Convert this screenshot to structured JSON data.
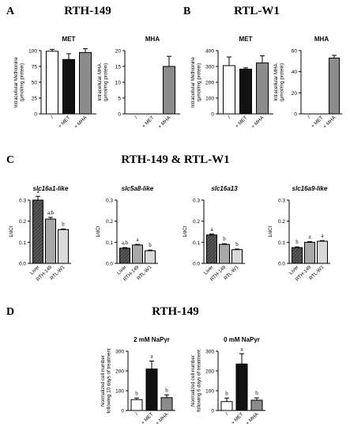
{
  "sections": [
    {
      "letter": "A",
      "title": "RTH-149"
    },
    {
      "letter": "B",
      "title": "RTL-W1"
    },
    {
      "letter": "C",
      "title": "RTH-149 & RTL-W1"
    },
    {
      "letter": "D",
      "title": "RTH-149"
    }
  ],
  "colors": {
    "white_bar": "#ffffff",
    "black_bar": "#111111",
    "gray_bar": "#8c8c8c",
    "light_gray_bar": "#d9d9d9",
    "mid_gray_bar": "#a8a8a8",
    "hatched_bar": "#4a4a4a",
    "axis": "#000000"
  },
  "chart_data": [
    {
      "type": "bar",
      "title": "MET",
      "ylabel": "Intracellular Methionine\n(µmol/mg protein)",
      "categories": [
        "/",
        "+ MET",
        "+ MHA"
      ],
      "values": [
        99,
        86,
        97
      ],
      "errors": [
        3,
        9,
        6
      ],
      "fills": [
        "white",
        "black",
        "gray"
      ],
      "letters": [
        "",
        "",
        ""
      ],
      "ylim": [
        0,
        100
      ],
      "yticks": [
        "0",
        "25",
        "50",
        "75",
        "100"
      ]
    },
    {
      "type": "bar",
      "title": "MHA",
      "ylabel": "Intracellular MHA\n(µmol/mg protein)",
      "categories": [
        "/",
        "+ MET",
        "+ MHA"
      ],
      "values": [
        0,
        0,
        15
      ],
      "errors": [
        0,
        0,
        3.2
      ],
      "fills": [
        "white",
        "black",
        "gray"
      ],
      "letters": [
        "",
        "",
        ""
      ],
      "ylim": [
        0,
        20
      ],
      "yticks": [
        "0",
        "5",
        "10",
        "15",
        "20"
      ]
    },
    {
      "type": "bar",
      "title": "MET",
      "ylabel": "Intracellular Methionine\n(µmol/mg protein)",
      "categories": [
        "/",
        "+ MET",
        "+ MHA"
      ],
      "values": [
        305,
        283,
        322
      ],
      "errors": [
        55,
        8,
        45
      ],
      "fills": [
        "white",
        "black",
        "gray"
      ],
      "letters": [
        "",
        "",
        ""
      ],
      "ylim": [
        0,
        400
      ],
      "yticks": [
        "0",
        "100",
        "200",
        "300",
        "400"
      ]
    },
    {
      "type": "bar",
      "title": "MHA",
      "ylabel": "Intracellular MHA\n(µmol/mg protein)",
      "categories": [
        "/",
        "+ MET",
        "+ MHA"
      ],
      "values": [
        0,
        0,
        53
      ],
      "errors": [
        0,
        0,
        2.5
      ],
      "fills": [
        "white",
        "black",
        "gray"
      ],
      "letters": [
        "",
        "",
        ""
      ],
      "ylim": [
        0,
        60
      ],
      "yticks": [
        "0",
        "20",
        "40",
        "60"
      ]
    },
    {
      "type": "bar",
      "title": "slc16a1-like",
      "ylabel": "1/dCt",
      "categories": [
        "Liver",
        "RTH-149",
        "RTL-W1"
      ],
      "values": [
        0.3,
        0.21,
        0.16
      ],
      "errors": [
        0.018,
        0.008,
        0.003
      ],
      "fills": [
        "hatched",
        "midgray",
        "lightgray"
      ],
      "letters": [
        "a",
        "a,b",
        "b"
      ],
      "ylim": [
        0,
        0.3
      ],
      "yticks": [
        "0.0",
        "0.1",
        "0.2",
        "0.3"
      ]
    },
    {
      "type": "bar",
      "title": "slc5a8-like",
      "ylabel": "1/dCt",
      "categories": [
        "Liver",
        "RTH-149",
        "RTL-W1"
      ],
      "values": [
        0.072,
        0.087,
        0.06
      ],
      "errors": [
        0.003,
        0.003,
        0.003
      ],
      "fills": [
        "hatched",
        "midgray",
        "lightgray"
      ],
      "letters": [
        "a,b",
        "a",
        "b"
      ],
      "ylim": [
        0,
        0.3
      ],
      "yticks": [
        "0.0",
        "0.1",
        "0.2",
        "0.3"
      ]
    },
    {
      "type": "bar",
      "title": "slc16a13",
      "ylabel": "1/dCt",
      "categories": [
        "Liver",
        "RTH-149",
        "RTL-W1"
      ],
      "values": [
        0.135,
        0.09,
        0.065
      ],
      "errors": [
        0.004,
        0.003,
        0.003
      ],
      "fills": [
        "hatched",
        "midgray",
        "lightgray"
      ],
      "letters": [
        "a",
        "b",
        "b"
      ],
      "ylim": [
        0,
        0.3
      ],
      "yticks": [
        "0.0",
        "0.1",
        "0.2",
        "0.3"
      ]
    },
    {
      "type": "bar",
      "title": "slc16a9-like",
      "ylabel": "1/dCt",
      "categories": [
        "Liver",
        "RTH-149",
        "RTL-W1"
      ],
      "values": [
        0.075,
        0.1,
        0.105
      ],
      "errors": [
        0.003,
        0.003,
        0.003
      ],
      "fills": [
        "hatched",
        "midgray",
        "lightgray"
      ],
      "letters": [
        "b",
        "a",
        "a"
      ],
      "ylim": [
        0,
        0.3
      ],
      "yticks": [
        "0.0",
        "0.1",
        "0.2",
        "0.3"
      ]
    },
    {
      "type": "bar",
      "title": "2 mM NaPyr",
      "ylabel": "Normalized cell number\nfollowing 10 days of treatment",
      "categories": [
        "/",
        "+ MET",
        "+ MHA"
      ],
      "values": [
        55,
        210,
        65
      ],
      "errors": [
        8,
        40,
        14
      ],
      "fills": [
        "white",
        "black",
        "gray"
      ],
      "letters": [
        "b",
        "a",
        "b"
      ],
      "ylim": [
        0,
        300
      ],
      "yticks": [
        "0",
        "100",
        "200",
        "300"
      ]
    },
    {
      "type": "bar",
      "title": "0 mM NaPyr",
      "ylabel": "Normalized cell number\nfollowing 6 days of treatment",
      "categories": [
        "/",
        "+ MET",
        "+ MHA"
      ],
      "values": [
        45,
        235,
        52
      ],
      "errors": [
        18,
        52,
        12
      ],
      "fills": [
        "white",
        "black",
        "gray"
      ],
      "letters": [
        "b",
        "a",
        "b"
      ],
      "ylim": [
        0,
        300
      ],
      "yticks": [
        "0",
        "100",
        "200",
        "300"
      ]
    }
  ]
}
